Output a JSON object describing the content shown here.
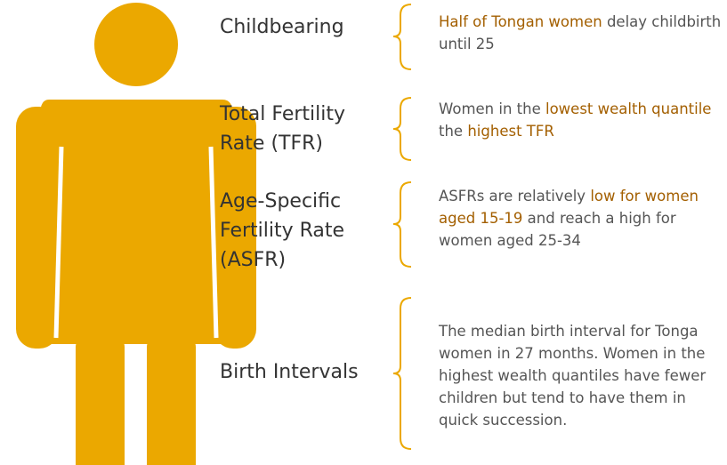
{
  "rows": [
    {
      "label": "Childbearing",
      "description": [
        {
          "text": "Half of Tongan women",
          "highlight": true
        },
        {
          "text": "delay childbirth until 25"
        }
      ]
    },
    {
      "label": "Total Fertility Rate (TFR)",
      "description": [
        {
          "text": "Women in the"
        },
        {
          "text": "lowest wealth quantile",
          "highlight": true
        },
        {
          "text": "the"
        },
        {
          "text": "highest TFR",
          "highlight": true
        }
      ]
    },
    {
      "label": "Age-Specific Fertility Rate (ASFR)",
      "description": [
        {
          "text": "ASFRs are relatively"
        },
        {
          "text": "low for women aged 15-19",
          "highlight": true
        },
        {
          "text": "and reach a high for women aged 25-34"
        }
      ]
    },
    {
      "label": "Birth Intervals",
      "description": [
        {
          "text": "The median birth interval for Tonga women in 27 months. Women in the highest wealth quantiles have fewer children but tend to have them in quick succession."
        }
      ]
    }
  ]
}
